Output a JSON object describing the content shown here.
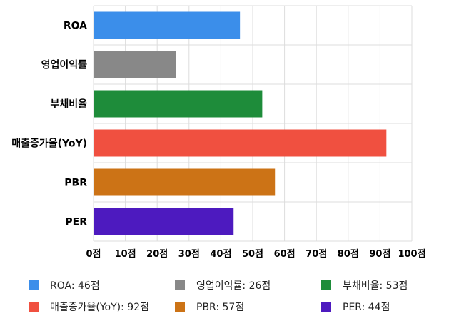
{
  "chart_data": {
    "type": "bar",
    "orientation": "horizontal",
    "categories": [
      "ROA",
      "영업이익률",
      "부채비율",
      "매출증가율(YoY)",
      "PBR",
      "PER"
    ],
    "values": [
      46,
      26,
      53,
      92,
      57,
      44
    ],
    "colors": [
      "#3b8eea",
      "#888888",
      "#1e8c3a",
      "#f05040",
      "#cc7316",
      "#4d1abf"
    ],
    "xlim": [
      0,
      100
    ],
    "x_ticks": [
      0,
      10,
      20,
      30,
      40,
      50,
      60,
      70,
      80,
      90,
      100
    ],
    "x_tick_labels": [
      "0점",
      "10점",
      "20점",
      "30점",
      "40점",
      "50점",
      "60점",
      "70점",
      "80점",
      "90점",
      "100점"
    ],
    "grid": true,
    "legend_position": "bottom",
    "legend": [
      {
        "label": "ROA: 46점",
        "color": "#3b8eea"
      },
      {
        "label": "영업이익률: 26점",
        "color": "#888888"
      },
      {
        "label": "부채비율: 53점",
        "color": "#1e8c3a"
      },
      {
        "label": "매출증가율(YoY): 92점",
        "color": "#f05040"
      },
      {
        "label": "PBR: 57점",
        "color": "#cc7316"
      },
      {
        "label": "PER: 44점",
        "color": "#4d1abf"
      }
    ]
  }
}
